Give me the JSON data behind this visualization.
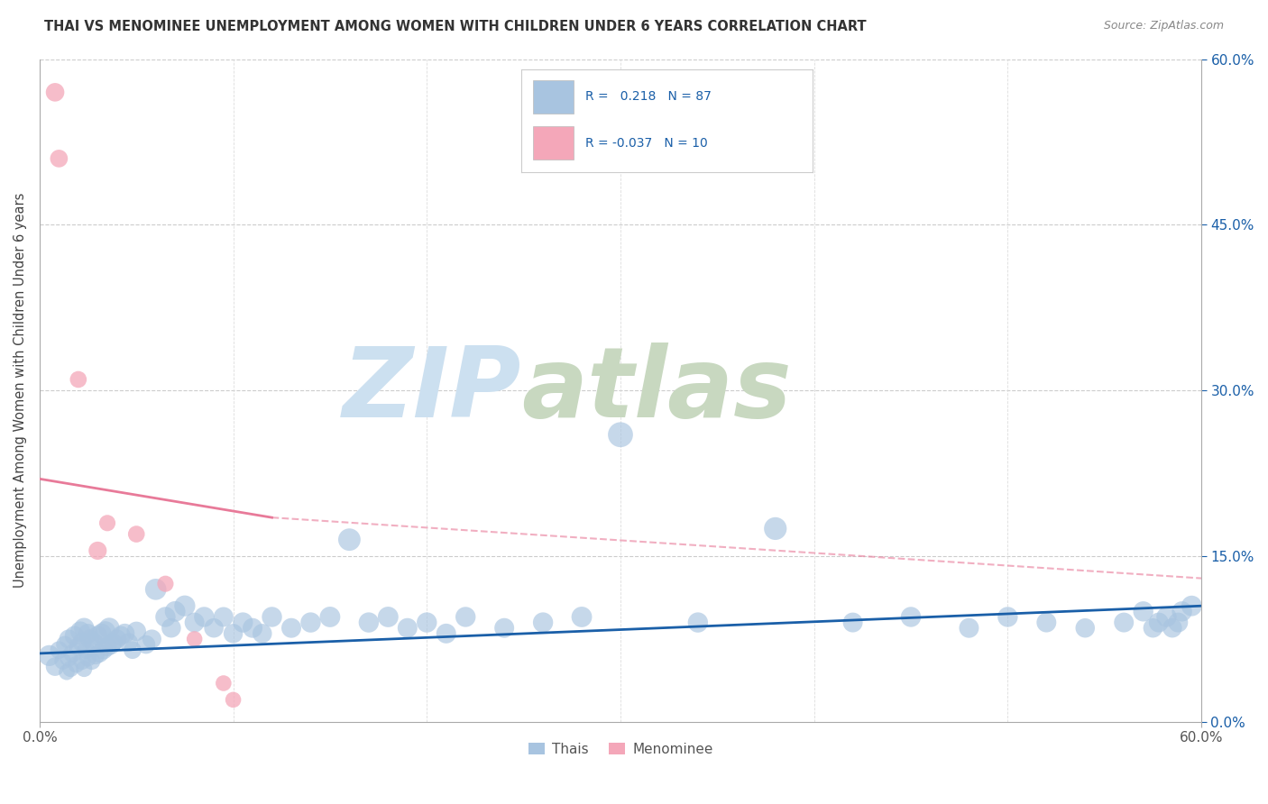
{
  "title": "THAI VS MENOMINEE UNEMPLOYMENT AMONG WOMEN WITH CHILDREN UNDER 6 YEARS CORRELATION CHART",
  "source": "Source: ZipAtlas.com",
  "ylabel": "Unemployment Among Women with Children Under 6 years",
  "xlim": [
    0,
    0.6
  ],
  "ylim": [
    0,
    0.6
  ],
  "right_ytick_positions": [
    0.6,
    0.45,
    0.3,
    0.15,
    0.0
  ],
  "right_ytick_labels": [
    "60.0%",
    "45.0%",
    "30.0%",
    "15.0%",
    "0.0%"
  ],
  "legend_r_thai": " 0.218",
  "legend_n_thai": "87",
  "legend_r_menominee": "-0.037",
  "legend_n_menominee": "10",
  "thai_color": "#a8c4e0",
  "menominee_color": "#f4a7b9",
  "trend_thai_color": "#1a5fa8",
  "trend_menominee_color": "#e87a99",
  "background_color": "#ffffff",
  "title_color": "#333333",
  "watermark_zip": "ZIP",
  "watermark_atlas": "atlas",
  "watermark_color_zip": "#cce0f0",
  "watermark_color_atlas": "#c8d8c0",
  "thai_x": [
    0.005,
    0.008,
    0.01,
    0.012,
    0.013,
    0.014,
    0.015,
    0.015,
    0.016,
    0.017,
    0.018,
    0.019,
    0.02,
    0.021,
    0.022,
    0.022,
    0.023,
    0.023,
    0.024,
    0.025,
    0.025,
    0.026,
    0.027,
    0.028,
    0.029,
    0.03,
    0.031,
    0.032,
    0.033,
    0.034,
    0.035,
    0.036,
    0.037,
    0.038,
    0.04,
    0.042,
    0.044,
    0.046,
    0.048,
    0.05,
    0.055,
    0.058,
    0.06,
    0.065,
    0.068,
    0.07,
    0.075,
    0.08,
    0.085,
    0.09,
    0.095,
    0.1,
    0.105,
    0.11,
    0.115,
    0.12,
    0.13,
    0.14,
    0.15,
    0.16,
    0.17,
    0.18,
    0.19,
    0.2,
    0.21,
    0.22,
    0.24,
    0.26,
    0.28,
    0.3,
    0.34,
    0.38,
    0.42,
    0.45,
    0.48,
    0.5,
    0.52,
    0.54,
    0.56,
    0.57,
    0.575,
    0.578,
    0.582,
    0.585,
    0.588,
    0.59,
    0.595
  ],
  "thai_y": [
    0.06,
    0.05,
    0.065,
    0.055,
    0.07,
    0.045,
    0.058,
    0.075,
    0.048,
    0.062,
    0.078,
    0.052,
    0.068,
    0.082,
    0.055,
    0.072,
    0.085,
    0.048,
    0.065,
    0.08,
    0.058,
    0.075,
    0.055,
    0.072,
    0.06,
    0.078,
    0.062,
    0.08,
    0.065,
    0.082,
    0.068,
    0.085,
    0.07,
    0.072,
    0.075,
    0.078,
    0.08,
    0.072,
    0.065,
    0.082,
    0.07,
    0.075,
    0.12,
    0.095,
    0.085,
    0.1,
    0.105,
    0.09,
    0.095,
    0.085,
    0.095,
    0.08,
    0.09,
    0.085,
    0.08,
    0.095,
    0.085,
    0.09,
    0.095,
    0.165,
    0.09,
    0.095,
    0.085,
    0.09,
    0.08,
    0.095,
    0.085,
    0.09,
    0.095,
    0.26,
    0.09,
    0.175,
    0.09,
    0.095,
    0.085,
    0.095,
    0.09,
    0.085,
    0.09,
    0.1,
    0.085,
    0.09,
    0.095,
    0.085,
    0.09,
    0.1,
    0.105
  ],
  "thai_sizes": [
    280,
    220,
    200,
    180,
    190,
    160,
    200,
    230,
    170,
    210,
    240,
    180,
    220,
    250,
    190,
    230,
    260,
    170,
    200,
    240,
    190,
    230,
    190,
    220,
    200,
    240,
    210,
    250,
    220,
    260,
    230,
    270,
    240,
    220,
    230,
    240,
    250,
    220,
    200,
    240,
    220,
    230,
    290,
    260,
    240,
    270,
    280,
    250,
    260,
    240,
    250,
    240,
    260,
    250,
    240,
    260,
    250,
    260,
    270,
    320,
    260,
    270,
    250,
    260,
    250,
    260,
    250,
    260,
    270,
    400,
    260,
    330,
    250,
    260,
    250,
    260,
    250,
    240,
    250,
    260,
    240,
    250,
    260,
    240,
    250,
    260,
    270
  ],
  "menominee_x": [
    0.008,
    0.01,
    0.02,
    0.03,
    0.035,
    0.05,
    0.065,
    0.08,
    0.095,
    0.1
  ],
  "menominee_y": [
    0.57,
    0.51,
    0.31,
    0.155,
    0.18,
    0.17,
    0.125,
    0.075,
    0.035,
    0.02
  ],
  "menominee_sizes": [
    220,
    200,
    180,
    210,
    170,
    180,
    170,
    160,
    160,
    160
  ],
  "trend_thai_x0": 0.0,
  "trend_thai_y0": 0.062,
  "trend_thai_x1": 0.6,
  "trend_thai_y1": 0.105,
  "trend_men_solid_x0": 0.0,
  "trend_men_solid_y0": 0.22,
  "trend_men_solid_x1": 0.12,
  "trend_men_solid_y1": 0.185,
  "trend_men_dash_x0": 0.12,
  "trend_men_dash_y0": 0.185,
  "trend_men_dash_x1": 0.6,
  "trend_men_dash_y1": 0.13
}
